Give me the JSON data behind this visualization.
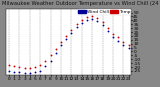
{
  "title": "Milwaukee Weather Outdoor Temperature vs Wind Chill (24 Hours)",
  "x_labels": [
    "0",
    "1",
    "2",
    "3",
    "4",
    "5",
    "6",
    "7",
    "8",
    "9",
    "10",
    "11",
    "12",
    "13",
    "14",
    "15",
    "16",
    "17",
    "18",
    "19",
    "20",
    "21",
    "22",
    "23"
  ],
  "temp_data": [
    [
      0,
      -18
    ],
    [
      1,
      -19
    ],
    [
      2,
      -20
    ],
    [
      3,
      -21
    ],
    [
      4,
      -21
    ],
    [
      5,
      -20
    ],
    [
      6,
      -18
    ],
    [
      7,
      -12
    ],
    [
      8,
      -5
    ],
    [
      9,
      3
    ],
    [
      10,
      12
    ],
    [
      11,
      20
    ],
    [
      12,
      28
    ],
    [
      13,
      35
    ],
    [
      14,
      40
    ],
    [
      15,
      44
    ],
    [
      16,
      46
    ],
    [
      17,
      43
    ],
    [
      18,
      38
    ],
    [
      19,
      30
    ],
    [
      20,
      22
    ],
    [
      21,
      18
    ],
    [
      22,
      12
    ],
    [
      23,
      8
    ]
  ],
  "windchill_data": [
    [
      0,
      -25
    ],
    [
      1,
      -26
    ],
    [
      2,
      -27
    ],
    [
      3,
      -28
    ],
    [
      4,
      -28
    ],
    [
      5,
      -27
    ],
    [
      6,
      -25
    ],
    [
      7,
      -19
    ],
    [
      8,
      -12
    ],
    [
      9,
      -2
    ],
    [
      10,
      8
    ],
    [
      11,
      16
    ],
    [
      12,
      24
    ],
    [
      13,
      31
    ],
    [
      14,
      36
    ],
    [
      15,
      40
    ],
    [
      16,
      42
    ],
    [
      17,
      39
    ],
    [
      18,
      34
    ],
    [
      19,
      26
    ],
    [
      20,
      18
    ],
    [
      21,
      14
    ],
    [
      22,
      8
    ],
    [
      23,
      4
    ]
  ],
  "temp_color": "#cc0000",
  "windchill_color": "#000099",
  "bg_color": "#888888",
  "plot_bg": "#ffffff",
  "grid_color": "#888888",
  "ylim": [
    -30,
    55
  ],
  "yticks": [
    -25,
    -20,
    -15,
    -10,
    -5,
    0,
    5,
    10,
    15,
    20,
    25,
    30,
    35,
    40,
    45,
    50
  ],
  "title_fontsize": 3.8,
  "tick_fontsize": 3.2,
  "legend_fontsize": 3.2,
  "marker_size": 1.8
}
